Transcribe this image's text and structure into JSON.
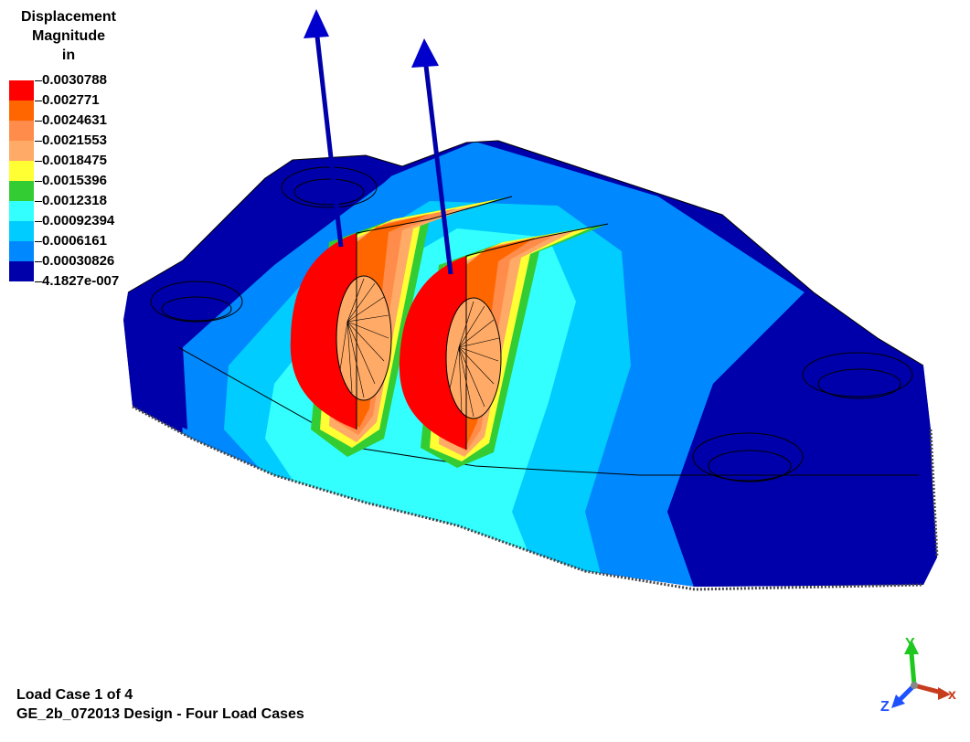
{
  "legend": {
    "title_lines": [
      "Displacement",
      "Magnitude",
      "in"
    ],
    "levels": [
      {
        "label": "0.0030788",
        "color": "#ff0000"
      },
      {
        "label": "0.002771",
        "color": "#ff6600"
      },
      {
        "label": "0.0024631",
        "color": "#ff8c4a"
      },
      {
        "label": "0.0021553",
        "color": "#ffaa66"
      },
      {
        "label": "0.0018475",
        "color": "#ffff33"
      },
      {
        "label": "0.0015396",
        "color": "#33cc33"
      },
      {
        "label": "0.0012318",
        "color": "#33ffff"
      },
      {
        "label": "0.00092394",
        "color": "#00ccff"
      },
      {
        "label": "0.0006161",
        "color": "#0088ff"
      },
      {
        "label": "0.00030826",
        "color": "#0000aa"
      },
      {
        "label": "4.1827e-007",
        "color": ""
      }
    ]
  },
  "footer": {
    "load_case": "Load Case 1 of 4",
    "design_name": "GE_2b_072013 Design - Four Load Cases"
  },
  "triad": {
    "x_label": "x",
    "y_label": "Y",
    "z_label": "Z",
    "x_color": "#c83c1e",
    "y_color": "#1ec81e",
    "z_color": "#1e50ff"
  },
  "colors": {
    "load_arrow": "#0000aa",
    "background": "#ffffff"
  }
}
